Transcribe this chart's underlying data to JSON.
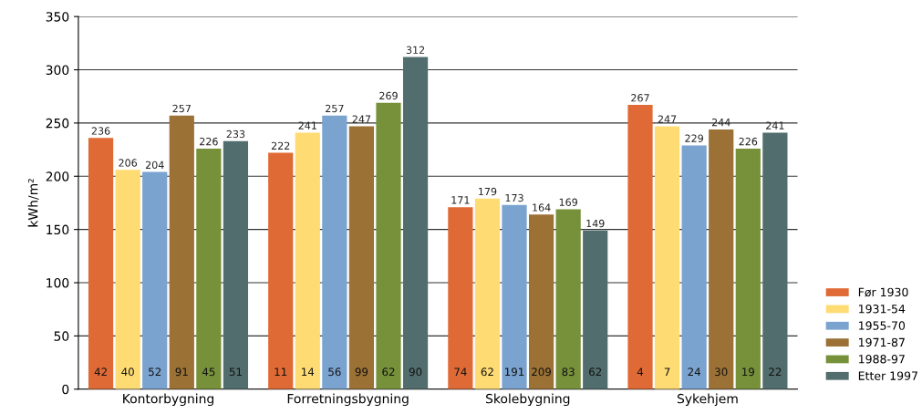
{
  "chart_data": {
    "type": "bar",
    "ylabel": "kWh/m²",
    "categories": [
      "Kontorbygning",
      "Forretningsbygning",
      "Skolebygning",
      "Sykehjem"
    ],
    "series": [
      {
        "name": "Før 1930",
        "color": "#e06a35",
        "values": [
          236,
          222,
          171,
          267
        ]
      },
      {
        "name": "1931-54",
        "color": "#ffdc73",
        "values": [
          206,
          241,
          179,
          247
        ]
      },
      {
        "name": "1955-70",
        "color": "#7ba3d0",
        "values": [
          204,
          257,
          173,
          229
        ]
      },
      {
        "name": "1971-87",
        "color": "#9b7135",
        "values": [
          257,
          247,
          164,
          244
        ]
      },
      {
        "name": "1988-97",
        "color": "#76913a",
        "values": [
          226,
          269,
          169,
          226
        ]
      },
      {
        "name": "Etter 1997",
        "color": "#526d6d",
        "values": [
          233,
          312,
          149,
          241
        ]
      }
    ],
    "ylim": [
      0,
      350
    ],
    "yticks": [
      0,
      50,
      100,
      150,
      200,
      250,
      300,
      350
    ],
    "grid": "y",
    "legend": "bottom right",
    "data_labels": true,
    "annotations": [
      "42",
      "40",
      "52",
      "91",
      "45",
      "51",
      "11",
      "14",
      "56",
      "99",
      "62",
      "90",
      "74",
      "62",
      "191",
      "209",
      "83",
      "62",
      "4",
      "7",
      "24",
      "30",
      "19",
      "22"
    ]
  }
}
